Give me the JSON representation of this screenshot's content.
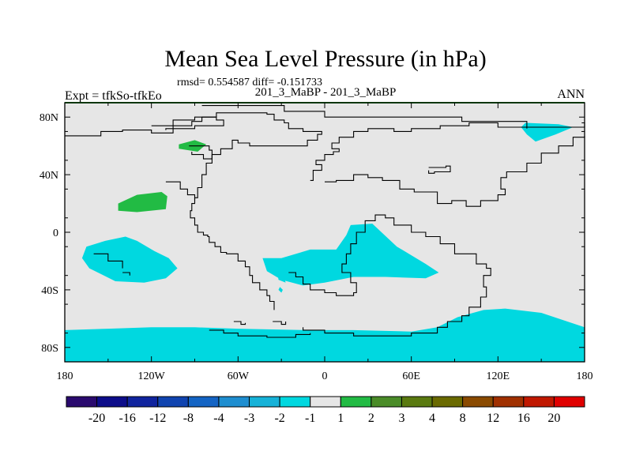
{
  "chart_data": {
    "type": "heatmap",
    "title": "Mean Sea Level Pressure (in hPa)",
    "stats_line": "rmsd= 0.554587 diff= -0.151733",
    "subtitle": "201_3_MaBP - 201_3_MaBP",
    "left_label": "Expt = tfkSo-tfkEo",
    "right_label": "ANN",
    "projection": "cylindrical-equidistant",
    "lon_range": [
      -180,
      180
    ],
    "lat_range": [
      -90,
      90
    ],
    "x_ticks": [
      {
        "value": -180,
        "label": "180"
      },
      {
        "value": -120,
        "label": "120W"
      },
      {
        "value": -60,
        "label": "60W"
      },
      {
        "value": 0,
        "label": "0"
      },
      {
        "value": 60,
        "label": "60E"
      },
      {
        "value": 120,
        "label": "120E"
      },
      {
        "value": 180,
        "label": "180"
      }
    ],
    "y_ticks": [
      {
        "value": 80,
        "label": "80N"
      },
      {
        "value": 40,
        "label": "40N"
      },
      {
        "value": 0,
        "label": "0"
      },
      {
        "value": -40,
        "label": "40S"
      },
      {
        "value": -80,
        "label": "80S"
      }
    ],
    "colorbar": {
      "colors": [
        "#2a0a6e",
        "#0d0d8a",
        "#10249e",
        "#1044b0",
        "#1464c4",
        "#1e8ed0",
        "#16b2d8",
        "#00d8e0",
        "#e6e6e6",
        "#22bb44",
        "#4a8c28",
        "#5a7a10",
        "#6a6a00",
        "#8a4a00",
        "#a03000",
        "#c01800",
        "#e00000"
      ],
      "labels": [
        "-20",
        "-16",
        "-12",
        "-8",
        "-4",
        "-3",
        "-2",
        "-1",
        "1",
        "2",
        "3",
        "4",
        "8",
        "12",
        "16",
        "20"
      ]
    },
    "anomaly_regions": [
      {
        "name": "north-pacific-positive",
        "level": "1 to 2",
        "color": "#22bb44",
        "points": [
          [
            -143,
            20
          ],
          [
            -130,
            26
          ],
          [
            -113,
            28
          ],
          [
            -109,
            25
          ],
          [
            -110,
            16
          ],
          [
            -130,
            14
          ],
          [
            -143,
            15
          ]
        ]
      },
      {
        "name": "north-america-positive",
        "level": "1 to 2",
        "color": "#22bb44",
        "points": [
          [
            -101,
            61
          ],
          [
            -90,
            64
          ],
          [
            -82,
            61
          ],
          [
            -88,
            56
          ],
          [
            -101,
            58
          ]
        ]
      },
      {
        "name": "central-pacific-negative",
        "level": "-2 to -1",
        "color": "#00d8e0",
        "points": [
          [
            -165,
            -10
          ],
          [
            -152,
            -6
          ],
          [
            -138,
            -3
          ],
          [
            -130,
            -6
          ],
          [
            -118,
            -13
          ],
          [
            -108,
            -18
          ],
          [
            -102,
            -25
          ],
          [
            -110,
            -32
          ],
          [
            -125,
            -35
          ],
          [
            -145,
            -34
          ],
          [
            -163,
            -25
          ],
          [
            -168,
            -18
          ]
        ]
      },
      {
        "name": "southeast-pacific-negative",
        "level": "-2 to -1",
        "color": "#00d8e0",
        "points": [
          [
            -33,
            -24
          ],
          [
            -29,
            -28
          ],
          [
            -27,
            -35
          ],
          [
            -32,
            -33
          ]
        ]
      },
      {
        "name": "southeast-pacific-speck",
        "level": "-2 to -1",
        "color": "#00d8e0",
        "points": [
          [
            -31,
            -38
          ],
          [
            -29,
            -40
          ],
          [
            -30,
            -42
          ],
          [
            -32,
            -40
          ]
        ]
      },
      {
        "name": "south-atlantic-negative",
        "level": "-2 to -1",
        "color": "#00d8e0",
        "points": [
          [
            -43,
            -18
          ],
          [
            -30,
            -18
          ],
          [
            -10,
            -12
          ],
          [
            8,
            -12
          ],
          [
            15,
            -2
          ],
          [
            18,
            5
          ],
          [
            33,
            6
          ],
          [
            50,
            -10
          ],
          [
            70,
            -22
          ],
          [
            79,
            -28
          ],
          [
            70,
            -32
          ],
          [
            42,
            -31
          ],
          [
            20,
            -31
          ],
          [
            0,
            -35
          ],
          [
            -15,
            -37
          ],
          [
            -30,
            -33
          ],
          [
            -40,
            -27
          ]
        ]
      },
      {
        "name": "arctic-negative",
        "level": "-2 to -1",
        "color": "#00d8e0",
        "points": [
          [
            139,
            76
          ],
          [
            162,
            75
          ],
          [
            172,
            73
          ],
          [
            160,
            68
          ],
          [
            146,
            63
          ],
          [
            140,
            68
          ],
          [
            136,
            73
          ]
        ]
      },
      {
        "name": "southern-ocean-negative",
        "level": "-2 to -1",
        "color": "#00d8e0",
        "points": [
          [
            -180,
            -68
          ],
          [
            -150,
            -67
          ],
          [
            -120,
            -66
          ],
          [
            -90,
            -66
          ],
          [
            -60,
            -67
          ],
          [
            -10,
            -68
          ],
          [
            20,
            -68
          ],
          [
            60,
            -69
          ],
          [
            78,
            -66
          ],
          [
            92,
            -59
          ],
          [
            110,
            -54
          ],
          [
            125,
            -53
          ],
          [
            150,
            -56
          ],
          [
            180,
            -66
          ],
          [
            180,
            -90
          ],
          [
            -180,
            -90
          ]
        ]
      }
    ],
    "coastline_outline": [
      [
        -85,
        88
      ],
      [
        -30,
        88
      ],
      [
        -28,
        84
      ],
      [
        0,
        84
      ],
      [
        0,
        80
      ],
      [
        95,
        80
      ],
      [
        95,
        77
      ],
      [
        140,
        77
      ],
      [
        140,
        73
      ],
      [
        180,
        73
      ],
      [
        180,
        76
      ],
      [
        178,
        76
      ]
    ],
    "coastline_segments": [
      [
        [
          -180,
          67
        ],
        [
          -155,
          70
        ],
        [
          -140,
          71
        ],
        [
          -120,
          69
        ],
        [
          -105,
          74
        ],
        [
          -92,
          77
        ],
        [
          -85,
          80
        ],
        [
          -75,
          83
        ],
        [
          -60,
          83
        ],
        [
          -40,
          82
        ],
        [
          -35,
          78
        ],
        [
          -28,
          76
        ],
        [
          -25,
          72
        ],
        [
          -15,
          70
        ],
        [
          -2,
          68
        ],
        [
          -5,
          64
        ],
        [
          -12,
          60
        ],
        [
          -40,
          60
        ],
        [
          -52,
          62
        ],
        [
          -60,
          64
        ],
        [
          -64,
          58
        ],
        [
          -72,
          54
        ],
        [
          -78,
          48
        ],
        [
          -82,
          40
        ],
        [
          -85,
          31
        ],
        [
          -88,
          24
        ],
        [
          -90,
          20
        ],
        [
          -92,
          15
        ],
        [
          -93,
          10
        ],
        [
          -90,
          5
        ],
        [
          -88,
          0
        ],
        [
          -84,
          -2
        ],
        [
          -81,
          -3
        ],
        [
          -80,
          -7
        ],
        [
          -76,
          -10
        ],
        [
          -72,
          -14
        ],
        [
          -68,
          -15
        ],
        [
          -60,
          -20
        ],
        [
          -55,
          -24
        ],
        [
          -52,
          -30
        ],
        [
          -50,
          -35
        ],
        [
          -45,
          -40
        ],
        [
          -40,
          -44
        ],
        [
          -38,
          -48
        ],
        [
          -35,
          -54
        ]
      ],
      [
        [
          -120,
          74
        ],
        [
          -105,
          78
        ],
        [
          -90,
          80
        ],
        [
          -75,
          78
        ],
        [
          -70,
          74
        ],
        [
          -90,
          72
        ],
        [
          -110,
          71
        ]
      ],
      [
        [
          -94,
          60
        ],
        [
          -80,
          57
        ],
        [
          -78,
          51
        ],
        [
          -84,
          54
        ],
        [
          -92,
          56
        ]
      ],
      [
        [
          -25,
          -28
        ],
        [
          -20,
          -31
        ],
        [
          -15,
          -36
        ],
        [
          -10,
          -40
        ],
        [
          0,
          -42
        ],
        [
          8,
          -44
        ],
        [
          20,
          -42
        ],
        [
          22,
          -35
        ],
        [
          18,
          -28
        ],
        [
          12,
          -22
        ],
        [
          15,
          -15
        ],
        [
          18,
          -8
        ],
        [
          22,
          0
        ],
        [
          28,
          8
        ],
        [
          35,
          12
        ],
        [
          42,
          10
        ],
        [
          48,
          5
        ],
        [
          55,
          5
        ],
        [
          60,
          0
        ],
        [
          70,
          -3
        ],
        [
          80,
          -8
        ],
        [
          90,
          -15
        ],
        [
          105,
          -22
        ],
        [
          112,
          -25
        ],
        [
          115,
          -30
        ],
        [
          110,
          -38
        ],
        [
          112,
          -45
        ],
        [
          108,
          -52
        ],
        [
          100,
          -58
        ],
        [
          95,
          -62
        ],
        [
          85,
          -66
        ],
        [
          78,
          -70
        ],
        [
          60,
          -72
        ],
        [
          40,
          -72
        ],
        [
          20,
          -70
        ],
        [
          0,
          -68
        ],
        [
          -15,
          -66
        ]
      ],
      [
        [
          0,
          35
        ],
        [
          8,
          36
        ],
        [
          20,
          40
        ],
        [
          30,
          38
        ],
        [
          40,
          36
        ],
        [
          52,
          30
        ],
        [
          62,
          28
        ],
        [
          78,
          20
        ],
        [
          88,
          22
        ],
        [
          98,
          18
        ],
        [
          108,
          22
        ],
        [
          120,
          26
        ],
        [
          125,
          30
        ],
        [
          122,
          38
        ],
        [
          126,
          42
        ],
        [
          132,
          42
        ],
        [
          140,
          48
        ],
        [
          150,
          55
        ],
        [
          162,
          60
        ],
        [
          172,
          66
        ],
        [
          180,
          67
        ]
      ],
      [
        [
          -10,
          36
        ],
        [
          -8,
          43
        ],
        [
          -2,
          47
        ],
        [
          -6,
          50
        ],
        [
          0,
          54
        ],
        [
          6,
          56
        ],
        [
          10,
          58
        ],
        [
          5,
          62
        ],
        [
          10,
          66
        ],
        [
          20,
          70
        ],
        [
          30,
          72
        ],
        [
          48,
          70
        ],
        [
          60,
          72
        ],
        [
          80,
          74
        ],
        [
          100,
          76
        ],
        [
          120,
          73
        ],
        [
          140,
          72
        ]
      ],
      [
        [
          72,
          45
        ],
        [
          84,
          46
        ],
        [
          87,
          42
        ],
        [
          76,
          41
        ],
        [
          72,
          43
        ]
      ],
      [
        [
          -110,
          35
        ],
        [
          -100,
          30
        ],
        [
          -95,
          26
        ],
        [
          -90,
          22
        ]
      ],
      [
        [
          -160,
          -15
        ],
        [
          -150,
          -20
        ],
        [
          -140,
          -25
        ]
      ],
      [
        [
          -63,
          -62
        ],
        [
          -58,
          -64
        ],
        [
          -55,
          -63
        ]
      ],
      [
        [
          -80,
          -68
        ],
        [
          -70,
          -70
        ],
        [
          -60,
          -72
        ],
        [
          -40,
          -73
        ],
        [
          -20,
          -71
        ],
        [
          -10,
          -70
        ]
      ],
      [
        [
          -140,
          -28
        ],
        [
          -135,
          -30
        ]
      ],
      [
        [
          -36,
          -62
        ],
        [
          -30,
          -64
        ],
        [
          -27,
          -62
        ]
      ]
    ]
  }
}
